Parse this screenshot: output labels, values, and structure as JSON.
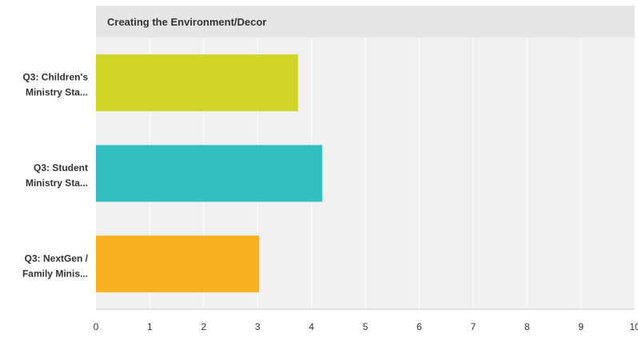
{
  "chart_data": {
    "type": "bar",
    "orientation": "horizontal",
    "title": "Creating the Environment/Decor",
    "categories": [
      [
        "Q3: Children's",
        "Ministry Sta..."
      ],
      [
        "Q3: Student",
        "Ministry Sta..."
      ],
      [
        "Q3: NextGen /",
        "Family Minis..."
      ]
    ],
    "values": [
      3.75,
      4.2,
      3.03
    ],
    "colors": [
      "#cfd427",
      "#33bfbf",
      "#f7b020"
    ],
    "xlim": [
      0,
      10
    ],
    "xticks": [
      "0",
      "1",
      "2",
      "3",
      "4",
      "5",
      "6",
      "7",
      "8",
      "9",
      "10"
    ],
    "grid": true,
    "legend": false,
    "background_color": "#f0f0f0",
    "header_color": "#e6e6e6"
  }
}
